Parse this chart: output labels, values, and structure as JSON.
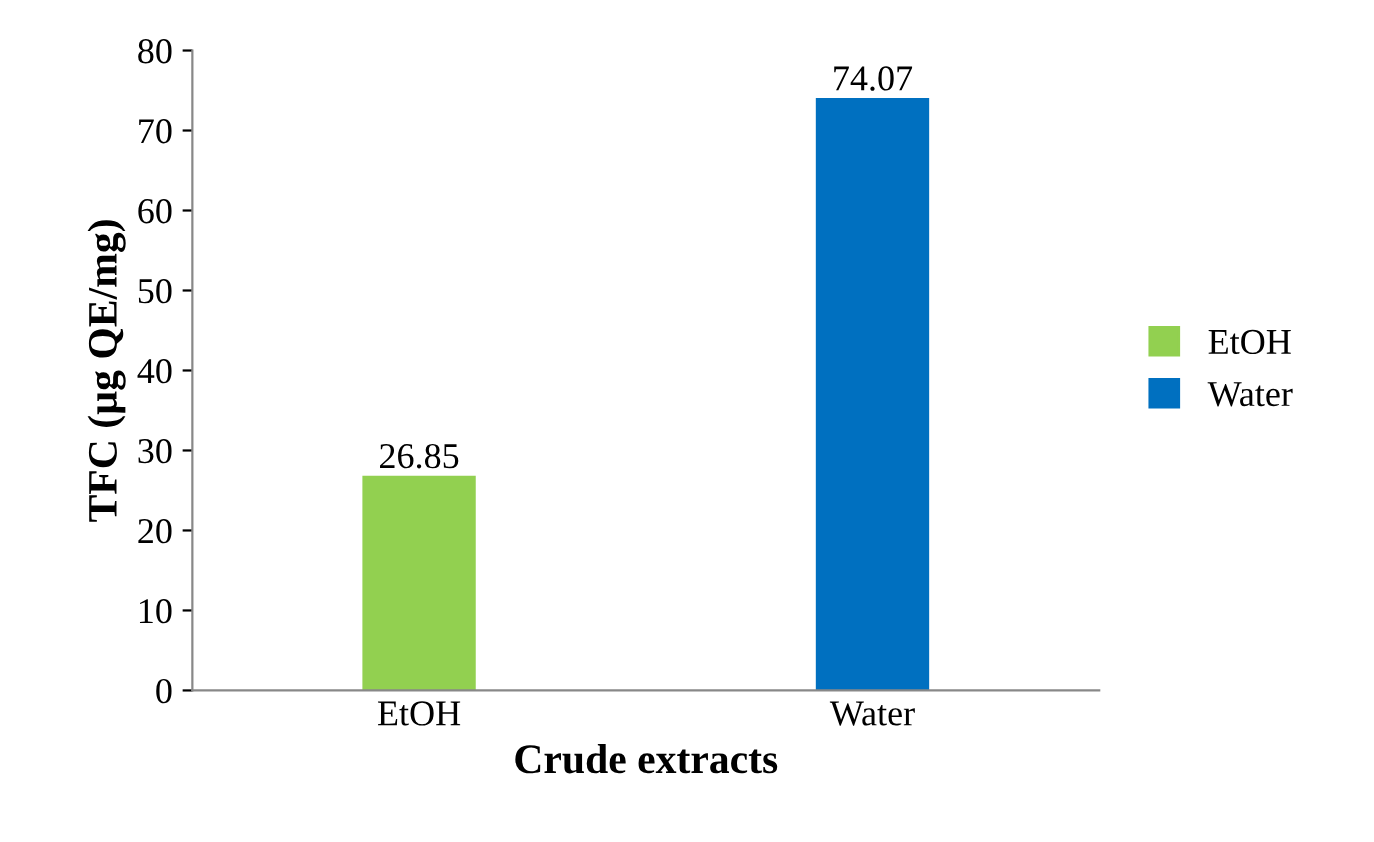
{
  "chart_data": {
    "type": "bar",
    "xlabel": "Crude extracts",
    "ylabel": "TFC (µg QE/mg)",
    "categories": [
      "EtOH",
      "Water"
    ],
    "series": [
      {
        "name": "EtOH",
        "color": "#92d050",
        "values": [
          26.85,
          null
        ]
      },
      {
        "name": "Water",
        "color": "#0070c0",
        "values": [
          null,
          74.07
        ]
      }
    ],
    "ylim": [
      0,
      80
    ],
    "yticks": [
      0,
      10,
      20,
      30,
      40,
      50,
      60,
      70,
      80
    ],
    "data_labels": true,
    "legend": "right",
    "grid": false
  }
}
